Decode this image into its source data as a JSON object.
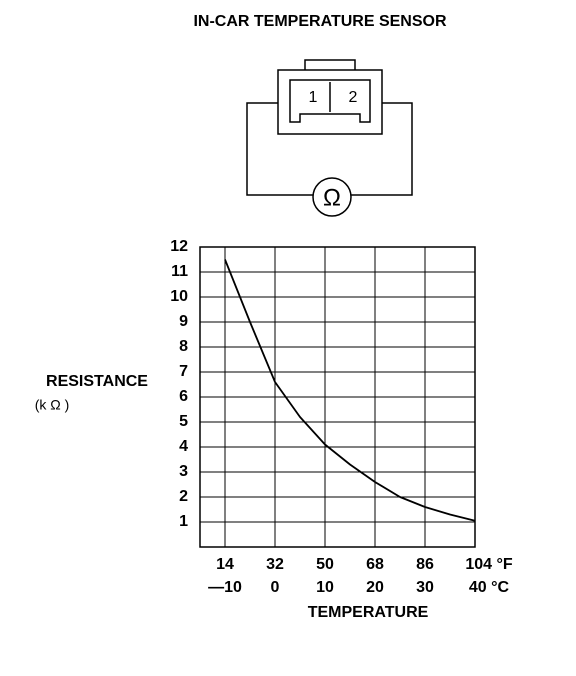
{
  "chart_data": {
    "type": "line",
    "title": "IN-CAR TEMPERATURE SENSOR",
    "diagram": {
      "pins": [
        "1",
        "2"
      ],
      "meter": "Ω"
    },
    "x_label": "TEMPERATURE",
    "y_label": "RESISTANCE",
    "y_unit": "(k Ω )",
    "x": [
      -10,
      -5,
      0,
      5,
      10,
      15,
      20,
      25,
      30,
      35,
      40
    ],
    "series": [
      {
        "color": "#000000",
        "values": [
          11.5,
          9.0,
          6.6,
          5.2,
          4.1,
          3.3,
          2.6,
          2.0,
          1.6,
          1.3,
          1.05
        ]
      }
    ],
    "xlim": [
      -15,
      40
    ],
    "xticks": [
      {
        "value": -10,
        "label": "—10"
      },
      0,
      10,
      20,
      30,
      {
        "value": 40,
        "label": "40 °C"
      }
    ],
    "x2lim": [
      5,
      104
    ],
    "x2ticks": [
      14,
      32,
      50,
      68,
      86,
      {
        "value": 104,
        "label": "104 °F"
      }
    ],
    "ylim": [
      0,
      12
    ],
    "yticks": [
      1,
      2,
      3,
      4,
      5,
      6,
      7,
      8,
      9,
      10,
      11,
      12
    ],
    "grid": true
  }
}
